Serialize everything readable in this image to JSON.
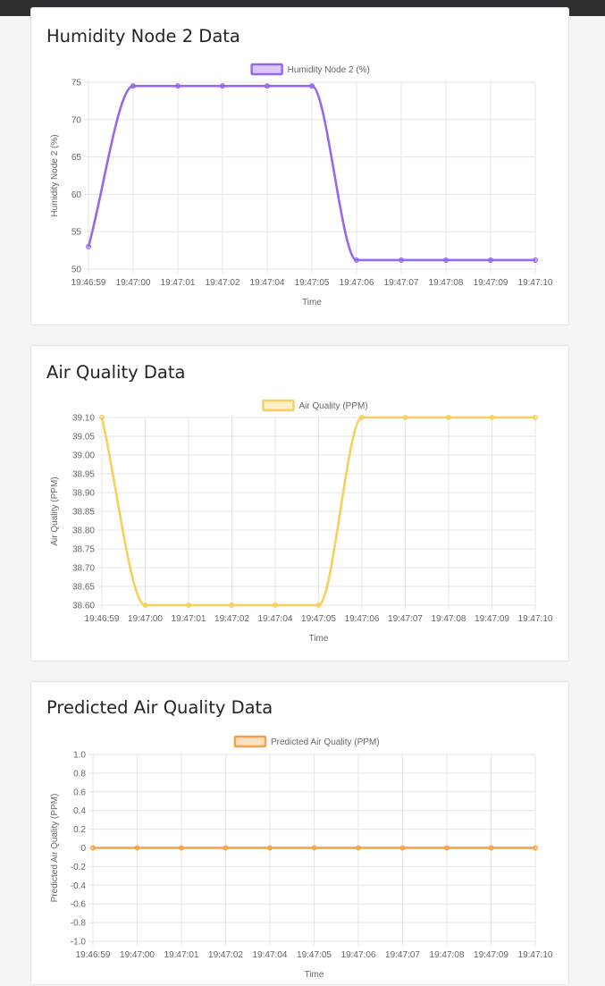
{
  "chart_data": [
    {
      "type": "line",
      "title": "Humidity Node 2 Data",
      "xlabel": "Time",
      "ylabel": "Humidity Node 2 (%)",
      "categories": [
        "19:46:59",
        "19:47:00",
        "19:47:01",
        "19:47:02",
        "19:47:04",
        "19:47:05",
        "19:47:06",
        "19:47:07",
        "19:47:08",
        "19:47:09",
        "19:47:10"
      ],
      "yticks": [
        "75",
        "70",
        "65",
        "60",
        "55",
        "50"
      ],
      "ylim": [
        50,
        75
      ],
      "grid": true,
      "legend_position": "top-center",
      "series": [
        {
          "name": "Humidity Node 2 (%)",
          "color": "#9966ee",
          "values": [
            53,
            74.5,
            74.5,
            74.5,
            74.5,
            74.5,
            51.2,
            51.2,
            51.2,
            51.2,
            51.2
          ]
        }
      ]
    },
    {
      "type": "line",
      "title": "Air Quality Data",
      "xlabel": "Time",
      "ylabel": "Air Quality (PPM)",
      "categories": [
        "19:46:59",
        "19:47:00",
        "19:47:01",
        "19:47:02",
        "19:47:04",
        "19:47:05",
        "19:47:06",
        "19:47:07",
        "19:47:08",
        "19:47:09",
        "19:47:10"
      ],
      "yticks": [
        "39.10",
        "39.05",
        "39.00",
        "38.95",
        "38.90",
        "38.85",
        "38.80",
        "38.75",
        "38.70",
        "38.65",
        "38.60"
      ],
      "ylim": [
        38.6,
        39.1
      ],
      "grid": true,
      "legend_position": "top-center",
      "series": [
        {
          "name": "Air Quality (PPM)",
          "color": "#f7cf5b",
          "values": [
            39.1,
            38.6,
            38.6,
            38.6,
            38.6,
            38.6,
            39.1,
            39.1,
            39.1,
            39.1,
            39.1
          ]
        }
      ]
    },
    {
      "type": "line",
      "title": "Predicted Air Quality Data",
      "xlabel": "Time",
      "ylabel": "Predicted Air Quality (PPM)",
      "categories": [
        "19:46:59",
        "19:47:00",
        "19:47:01",
        "19:47:02",
        "19:47:04",
        "19:47:05",
        "19:47:06",
        "19:47:07",
        "19:47:08",
        "19:47:09",
        "19:47:10"
      ],
      "yticks": [
        "1.0",
        "0.8",
        "0.6",
        "0.4",
        "0.2",
        "0",
        "-0.2",
        "-0.4",
        "-0.6",
        "-0.8",
        "-1.0"
      ],
      "ylim": [
        -1.0,
        1.0
      ],
      "grid": true,
      "legend_position": "top-center",
      "series": [
        {
          "name": "Predicted Air Quality (PPM)",
          "color": "#f2a24a",
          "values": [
            0,
            0,
            0,
            0,
            0,
            0,
            0,
            0,
            0,
            0,
            0
          ]
        }
      ]
    }
  ]
}
